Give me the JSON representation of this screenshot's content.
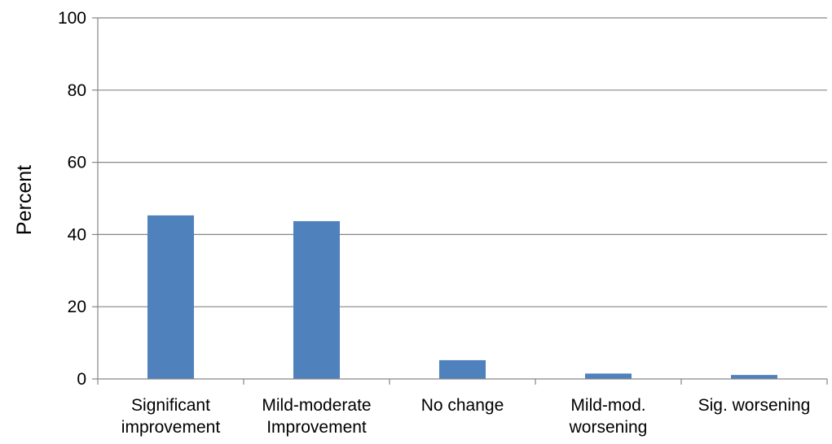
{
  "chart_data": {
    "type": "bar",
    "categories": [
      [
        "Significant",
        "improvement"
      ],
      [
        "Mild-moderate",
        "Improvement"
      ],
      [
        "No change"
      ],
      [
        "Mild-mod.",
        "worsening"
      ],
      [
        "Sig. worsening"
      ]
    ],
    "values": [
      45.3,
      43.7,
      5.2,
      1.5,
      1.1
    ],
    "ylabel": "Percent",
    "ylim": [
      0,
      100
    ],
    "yticks": [
      0,
      20,
      40,
      60,
      80,
      100
    ],
    "grid": true,
    "legend": "none",
    "bar_color": "#4f81bd",
    "grid_color": "#868686"
  }
}
